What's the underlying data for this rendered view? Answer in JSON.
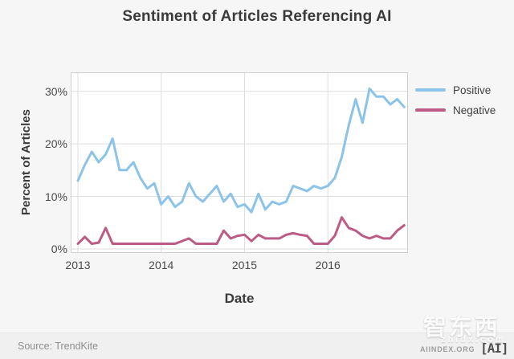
{
  "title": "Sentiment of Articles Referencing AI",
  "chart_data": {
    "type": "line",
    "title": "Sentiment of Articles Referencing AI",
    "xlabel": "Date",
    "ylabel": "Percent of Articles",
    "x_unit": "month",
    "x_range": "Jan 2013 to Dec 2016, monthly points",
    "ylim": [
      0,
      33.5
    ],
    "grid": true,
    "legend_position": "right",
    "x_ticks": [
      {
        "label": "2013",
        "month_index": 0
      },
      {
        "label": "2014",
        "month_index": 12
      },
      {
        "label": "2015",
        "month_index": 24
      },
      {
        "label": "2016",
        "month_index": 36
      }
    ],
    "y_ticks": [
      {
        "label": "0%",
        "value": 0
      },
      {
        "label": "10%",
        "value": 10
      },
      {
        "label": "20%",
        "value": 20
      },
      {
        "label": "30%",
        "value": 30
      }
    ],
    "series": [
      {
        "name": "Positive",
        "color": "#8CC3E8",
        "values": [
          13,
          16,
          18.5,
          16.5,
          18,
          21,
          15,
          15,
          16.5,
          13.5,
          11.5,
          12.5,
          8.5,
          10,
          8,
          9,
          12.5,
          10,
          9,
          10.5,
          12,
          9,
          10.5,
          8,
          8.5,
          7,
          10.5,
          7.5,
          9,
          8.5,
          9,
          12,
          11.5,
          11,
          12,
          11.5,
          12,
          13.5,
          17.5,
          23.5,
          28.5,
          24,
          30.5,
          29,
          29,
          27.5,
          28.5,
          27
        ]
      },
      {
        "name": "Negative",
        "color": "#BC5B85",
        "values": [
          1,
          2.3,
          1,
          1.2,
          4,
          1,
          1,
          1,
          1,
          1,
          1,
          1,
          1,
          1,
          1,
          1.5,
          2,
          1,
          1,
          1,
          1,
          3.5,
          2,
          2.5,
          2.7,
          1.5,
          2.7,
          2,
          2,
          2,
          2.7,
          3,
          2.7,
          2.5,
          1,
          1,
          1,
          2.5,
          6,
          4,
          3.5,
          2.5,
          2,
          2.5,
          2,
          2,
          3.5,
          4.5
        ]
      }
    ]
  },
  "axes": {
    "x_title": "Date",
    "y_title": "Percent of Articles"
  },
  "footer": {
    "source": "Source: TrendKite",
    "watermark_cn": "智东西",
    "watermark_site": "zhidx.com",
    "aiindex": "AIINDEX.ORG",
    "logo": "[AI]"
  },
  "colors": {
    "background": "#f6f6f6",
    "plot_background": "#ffffff",
    "gridline": "#dedede",
    "plot_border": "#cfcfcf",
    "positive": "#8CC3E8",
    "negative": "#BC5B85"
  }
}
